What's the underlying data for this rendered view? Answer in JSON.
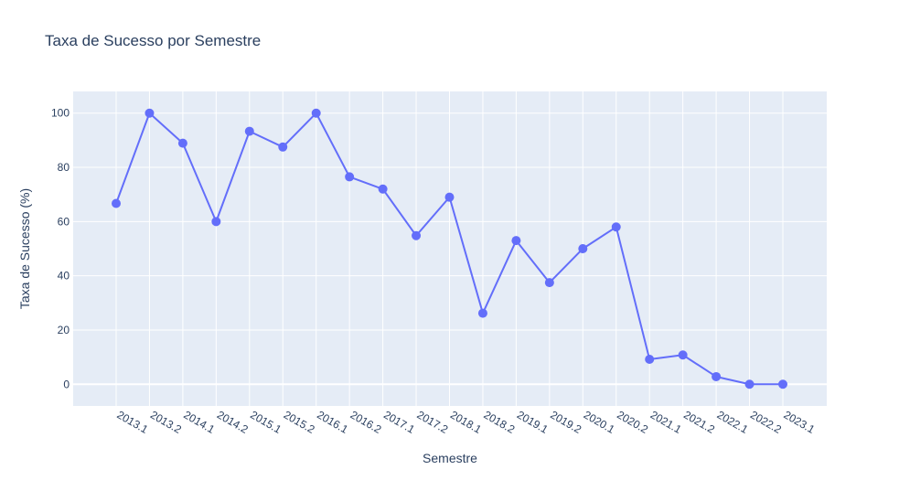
{
  "chart_data": {
    "type": "line",
    "title": "Taxa de Sucesso por Semestre",
    "xlabel": "Semestre",
    "ylabel": "Taxa de Sucesso (%)",
    "categories": [
      "2013.1",
      "2013.2",
      "2014.1",
      "2014.2",
      "2015.1",
      "2015.2",
      "2016.1",
      "2016.2",
      "2017.1",
      "2017.2",
      "2018.1",
      "2018.2",
      "2019.1",
      "2019.2",
      "2020.1",
      "2020.2",
      "2021.1",
      "2021.2",
      "2022.1",
      "2022.2",
      "2023.1"
    ],
    "series": [
      {
        "values": [
          66.7,
          100,
          88.9,
          60,
          93.3,
          87.5,
          100,
          76.5,
          72,
          54.8,
          69,
          26.2,
          53,
          37.5,
          50,
          58,
          9.2,
          10.8,
          2.8,
          0,
          0
        ]
      }
    ],
    "ylim": [
      -8,
      108
    ],
    "yticks": [
      0,
      20,
      40,
      60,
      80,
      100
    ],
    "grid": true,
    "colors": {
      "line": "#636efa",
      "plot_bg": "#e5ecf6",
      "grid": "#ffffff",
      "text": "#2a3f5f"
    }
  }
}
